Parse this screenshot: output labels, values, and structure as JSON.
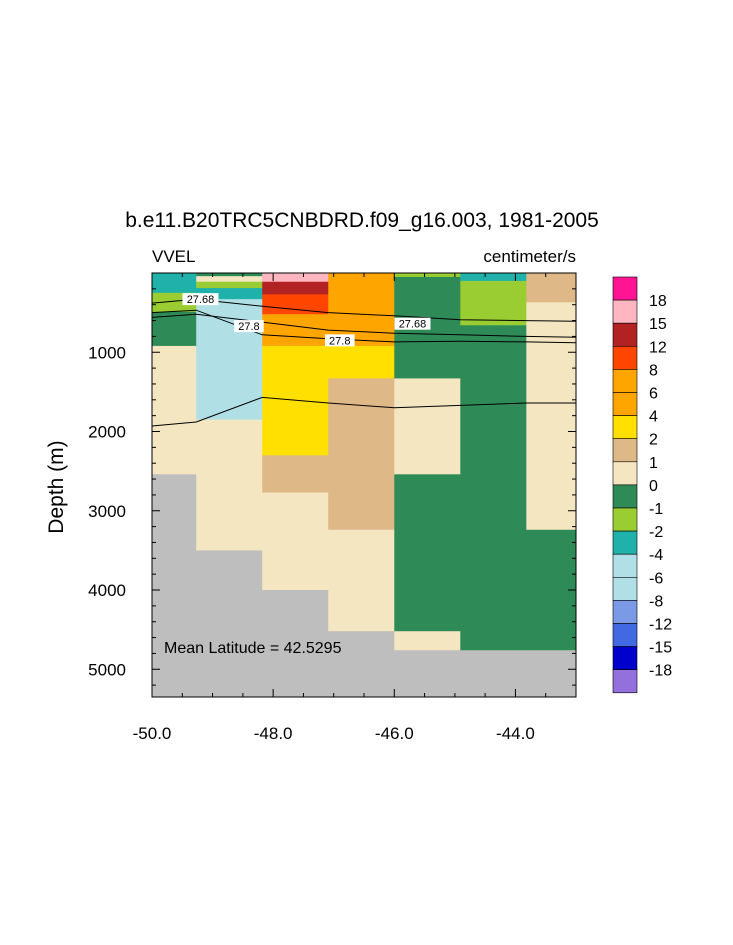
{
  "chart_data": {
    "type": "heatmap",
    "title": "b.e11.B20TRC5CNBDRD.f09_g16.003, 1981-2005",
    "left_subtitle": "VVEL",
    "right_subtitle": "centimeter/s",
    "ylabel": "Depth (m)",
    "xlabel": "",
    "xlim": [
      -50.0,
      -43.0
    ],
    "ylim": [
      0,
      5350
    ],
    "y_reversed": true,
    "x_ticks": [
      "-50.0",
      "-48.0",
      "-46.0",
      "-44.0"
    ],
    "y_ticks": [
      "1000",
      "2000",
      "3000",
      "4000",
      "5000"
    ],
    "annotation": "Mean Latitude = 42.5295",
    "colorbar": {
      "labels": [
        "18",
        "15",
        "12",
        "8",
        "6",
        "4",
        "2",
        "1",
        "0",
        "-1",
        "-2",
        "-4",
        "-6",
        "-8",
        "-12",
        "-15",
        "-18"
      ],
      "colors": [
        "#ff1493",
        "#ffb6c1",
        "#b22222",
        "#ff4500",
        "#ffa500",
        "#ffa500",
        "#ffe000",
        "#deb887",
        "#f5e6c2",
        "#2e8b57",
        "#9acd32",
        "#20b2aa",
        "#b0e0e6",
        "#b0e0e6",
        "#7b9ae6",
        "#4169e1",
        "#0000cd",
        "#9370db"
      ]
    },
    "missing_color": "#bebebe",
    "columns": [
      {
        "x_range": [
          -50.0,
          -49.27
        ],
        "cells": [
          {
            "depth": [
              0,
              20
            ],
            "color": "#20b2aa"
          },
          {
            "depth": [
              20,
              250
            ],
            "color": "#20b2aa"
          },
          {
            "depth": [
              250,
              330
            ],
            "color": "#9acd32"
          },
          {
            "depth": [
              330,
              490
            ],
            "color": "#9acd32"
          },
          {
            "depth": [
              490,
              920
            ],
            "color": "#2e8b57"
          },
          {
            "depth": [
              920,
              2540
            ],
            "color": "#f5e6c2"
          },
          {
            "depth": [
              2540,
              5350
            ],
            "color": "#bebebe"
          }
        ]
      },
      {
        "x_range": [
          -49.27,
          -48.18
        ],
        "cells": [
          {
            "depth": [
              0,
              40
            ],
            "color": "#2e8b57"
          },
          {
            "depth": [
              40,
              110
            ],
            "color": "#f5e6c2"
          },
          {
            "depth": [
              110,
              190
            ],
            "color": "#9acd32"
          },
          {
            "depth": [
              190,
              330
            ],
            "color": "#20b2aa"
          },
          {
            "depth": [
              330,
              1850
            ],
            "color": "#b0e0e6"
          },
          {
            "depth": [
              1850,
              3500
            ],
            "color": "#f5e6c2"
          },
          {
            "depth": [
              3500,
              5350
            ],
            "color": "#bebebe"
          }
        ]
      },
      {
        "x_range": [
          -48.18,
          -47.09
        ],
        "cells": [
          {
            "depth": [
              0,
              110
            ],
            "color": "#ffb6c1"
          },
          {
            "depth": [
              110,
              270
            ],
            "color": "#b22222"
          },
          {
            "depth": [
              270,
              520
            ],
            "color": "#ff4500"
          },
          {
            "depth": [
              520,
              920
            ],
            "color": "#ffa500"
          },
          {
            "depth": [
              920,
              2300
            ],
            "color": "#ffe000"
          },
          {
            "depth": [
              2300,
              2770
            ],
            "color": "#deb887"
          },
          {
            "depth": [
              2770,
              4000
            ],
            "color": "#f5e6c2"
          },
          {
            "depth": [
              4000,
              5350
            ],
            "color": "#bebebe"
          }
        ]
      },
      {
        "x_range": [
          -47.09,
          -46.0
        ],
        "cells": [
          {
            "depth": [
              0,
              920
            ],
            "color": "#ffa500"
          },
          {
            "depth": [
              920,
              1330
            ],
            "color": "#ffe000"
          },
          {
            "depth": [
              1330,
              3240
            ],
            "color": "#deb887"
          },
          {
            "depth": [
              3240,
              4520
            ],
            "color": "#f5e6c2"
          },
          {
            "depth": [
              4520,
              5350
            ],
            "color": "#bebebe"
          }
        ]
      },
      {
        "x_range": [
          -46.0,
          -44.91
        ],
        "cells": [
          {
            "depth": [
              0,
              50
            ],
            "color": "#9acd32"
          },
          {
            "depth": [
              50,
              1330
            ],
            "color": "#2e8b57"
          },
          {
            "depth": [
              1330,
              2540
            ],
            "color": "#f5e6c2"
          },
          {
            "depth": [
              2540,
              4520
            ],
            "color": "#2e8b57"
          },
          {
            "depth": [
              4520,
              4760
            ],
            "color": "#f5e6c2"
          },
          {
            "depth": [
              4760,
              5350
            ],
            "color": "#bebebe"
          }
        ]
      },
      {
        "x_range": [
          -44.91,
          -43.82
        ],
        "cells": [
          {
            "depth": [
              0,
              100
            ],
            "color": "#20b2aa"
          },
          {
            "depth": [
              100,
              660
            ],
            "color": "#9acd32"
          },
          {
            "depth": [
              660,
              4760
            ],
            "color": "#2e8b57"
          },
          {
            "depth": [
              4760,
              5350
            ],
            "color": "#bebebe"
          }
        ]
      },
      {
        "x_range": [
          -43.82,
          -43.0
        ],
        "cells": [
          {
            "depth": [
              0,
              370
            ],
            "color": "#deb887"
          },
          {
            "depth": [
              370,
              3240
            ],
            "color": "#f5e6c2"
          },
          {
            "depth": [
              3240,
              4760
            ],
            "color": "#2e8b57"
          },
          {
            "depth": [
              4760,
              5350
            ],
            "color": "#bebebe"
          }
        ]
      }
    ],
    "contours": [
      {
        "level": "27.68",
        "points": [
          [
            -50.0,
            380
          ],
          [
            -49.27,
            330
          ],
          [
            -48.18,
            420
          ],
          [
            -47.09,
            500
          ],
          [
            -46.0,
            540
          ],
          [
            -44.91,
            590
          ],
          [
            -43.82,
            600
          ],
          [
            -43.0,
            610
          ]
        ]
      },
      {
        "level": "27.8",
        "points": [
          [
            -50.0,
            560
          ],
          [
            -49.27,
            520
          ],
          [
            -48.18,
            620
          ],
          [
            -47.09,
            720
          ],
          [
            -46.0,
            760
          ],
          [
            -44.91,
            780
          ],
          [
            -43.82,
            800
          ],
          [
            -43.0,
            810
          ]
        ]
      },
      {
        "level": "",
        "points": [
          [
            -50.0,
            500
          ],
          [
            -49.27,
            470
          ],
          [
            -48.18,
            780
          ],
          [
            -47.09,
            830
          ],
          [
            -46.0,
            870
          ],
          [
            -44.91,
            860
          ],
          [
            -43.82,
            870
          ],
          [
            -43.0,
            880
          ]
        ]
      },
      {
        "level": "",
        "points": [
          [
            -50.0,
            1930
          ],
          [
            -49.27,
            1880
          ],
          [
            -48.18,
            1570
          ],
          [
            -47.09,
            1640
          ],
          [
            -46.0,
            1700
          ],
          [
            -44.91,
            1670
          ],
          [
            -43.82,
            1640
          ],
          [
            -43.0,
            1640
          ]
        ]
      }
    ],
    "contour_labels": [
      {
        "text": "27.68",
        "x": -49.2,
        "y": 330
      },
      {
        "text": "27.8",
        "x": -48.4,
        "y": 670
      },
      {
        "text": "27.8",
        "x": -46.9,
        "y": 850
      },
      {
        "text": "27.68",
        "x": -45.7,
        "y": 640
      }
    ]
  }
}
